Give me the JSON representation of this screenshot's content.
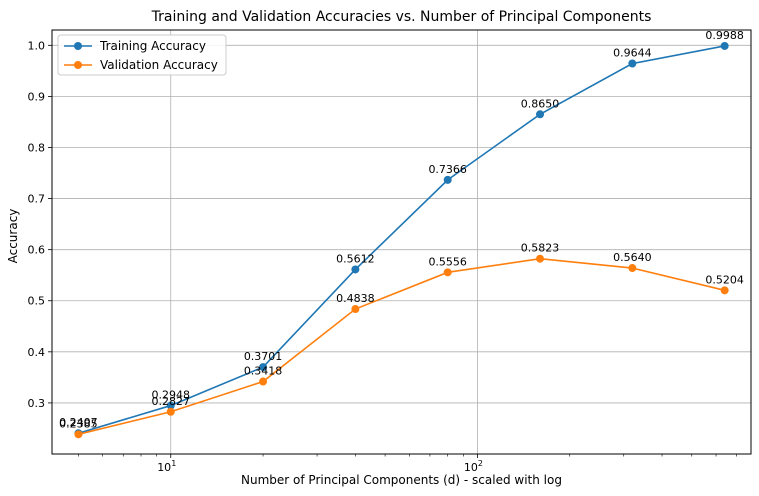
{
  "chart_data": {
    "type": "line",
    "title": "Training and Validation Accuracies vs. Number of Principal Components",
    "xlabel": "Number of Principal Components (d) - scaled with log",
    "ylabel": "Accuracy",
    "xscale": "log",
    "xlim": [
      4.1,
      780
    ],
    "ylim": [
      0.2,
      1.03
    ],
    "grid": true,
    "legend_position": "top-left",
    "x": [
      5,
      10,
      20,
      40,
      80,
      160,
      320,
      640
    ],
    "y_ticks": [
      "0.3",
      "0.4",
      "0.5",
      "0.6",
      "0.7",
      "0.8",
      "0.9",
      "1.0"
    ],
    "x_ticks_major": [
      {
        "value": 10,
        "base": "10",
        "exp": "1"
      },
      {
        "value": 100,
        "base": "10",
        "exp": "2"
      }
    ],
    "series": [
      {
        "name": "Training Accuracy",
        "color": "#1f77b4",
        "values": [
          0.2407,
          0.2948,
          0.3701,
          0.5612,
          0.7366,
          0.865,
          0.9644,
          0.9988
        ],
        "labels": [
          "0.2407",
          "0.2948",
          "0.3701",
          "0.5612",
          "0.7366",
          "0.8650",
          "0.9644",
          "0.9988"
        ]
      },
      {
        "name": "Validation Accuracy",
        "color": "#ff7f0e",
        "values": [
          0.2385,
          0.2827,
          0.3418,
          0.4838,
          0.5556,
          0.5823,
          0.564,
          0.5204
        ],
        "labels": [
          "0.2385",
          "0.2827",
          "0.3418",
          "0.4838",
          "0.5556",
          "0.5823",
          "0.5640",
          "0.5204"
        ]
      }
    ]
  }
}
